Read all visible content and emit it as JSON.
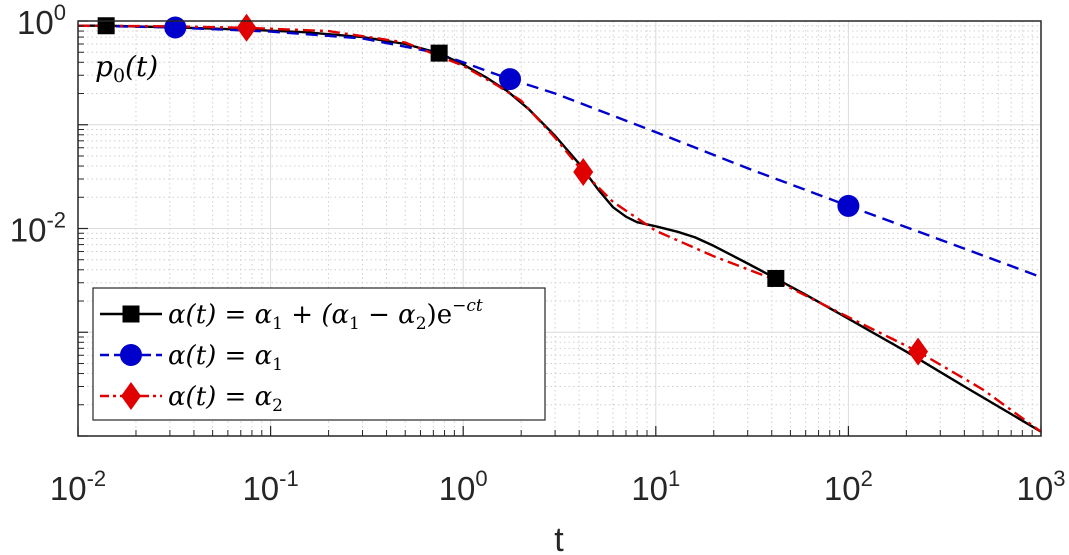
{
  "chart_data": {
    "type": "line",
    "title": "",
    "xlabel": "t",
    "ylabel": "",
    "xscale": "log",
    "yscale": "log",
    "xlim": [
      0.01,
      1000
    ],
    "ylim": [
      0.0001,
      1
    ],
    "grid": true,
    "minor_grid": true,
    "legend_position": "bottom-left",
    "annotation": {
      "text": "p₀(t)",
      "base": "p",
      "subscript": "0",
      "rest": "(t)"
    },
    "x_ticks": [
      {
        "value": 0.01,
        "base": "10",
        "exp": "-2"
      },
      {
        "value": 0.1,
        "base": "10",
        "exp": "-1"
      },
      {
        "value": 1,
        "base": "10",
        "exp": "0"
      },
      {
        "value": 10,
        "base": "10",
        "exp": "1"
      },
      {
        "value": 100,
        "base": "10",
        "exp": "2"
      },
      {
        "value": 1000,
        "base": "10",
        "exp": "3"
      }
    ],
    "y_ticks": [
      {
        "value": 1,
        "base": "10",
        "exp": "0"
      },
      {
        "value": 0.01,
        "base": "10",
        "exp": "-2"
      }
    ],
    "series": [
      {
        "name": "α(t) = α₁ + (α₁ − α₂)e^(−ct)",
        "legend": {
          "pre": "α(t) = α",
          "s1": "1",
          "mid": " + (α",
          "s2": "1",
          "mid2": " − α",
          "s3": "2",
          "post": ")e",
          "sup": "−ct"
        },
        "color": "#000000",
        "dash": "solid",
        "marker": "square",
        "x": [
          0.01,
          0.014,
          0.03,
          0.07,
          0.15,
          0.3,
          0.5,
          0.75,
          1.0,
          1.3,
          1.7,
          2.2,
          3.0,
          4.0,
          5.0,
          6.0,
          7.0,
          8.0,
          10.0,
          13.0,
          16.0,
          20.0,
          30.0,
          42.0,
          60.0,
          100.0,
          200.0,
          400.0,
          1000.0
        ],
        "y": [
          0.9,
          0.9,
          0.87,
          0.83,
          0.78,
          0.7,
          0.6,
          0.49,
          0.38,
          0.29,
          0.21,
          0.14,
          0.078,
          0.042,
          0.024,
          0.016,
          0.013,
          0.0115,
          0.0105,
          0.0093,
          0.0082,
          0.0068,
          0.0046,
          0.0033,
          0.0023,
          0.00135,
          0.00065,
          0.0003,
          0.00011
        ],
        "marker_x": [
          0.014,
          0.75,
          42.0
        ]
      },
      {
        "name": "α(t) = α₁",
        "legend": {
          "pre": "α(t) = α",
          "s1": "1"
        },
        "color": "#0000cc",
        "dash": "dashed",
        "marker": "circle",
        "x": [
          0.01,
          0.03,
          0.1,
          0.3,
          0.7,
          1.0,
          1.7,
          3.0,
          10.0,
          30.0,
          100.0,
          300.0,
          1000.0
        ],
        "y": [
          0.9,
          0.87,
          0.79,
          0.68,
          0.5,
          0.4,
          0.28,
          0.2,
          0.085,
          0.038,
          0.0165,
          0.0078,
          0.0034
        ],
        "marker_x": [
          0.032,
          1.75,
          100.0
        ]
      },
      {
        "name": "α(t) = α₂",
        "legend": {
          "pre": "α(t) = α",
          "s1": "2"
        },
        "color": "#e00000",
        "dash": "dashdot",
        "marker": "diamond",
        "x": [
          0.01,
          0.03,
          0.075,
          0.2,
          0.5,
          1.0,
          1.5,
          2.0,
          3.0,
          4.2,
          6.0,
          10.0,
          20.0,
          40.0,
          100.0,
          230.0,
          500.0,
          1000.0
        ],
        "y": [
          0.9,
          0.89,
          0.86,
          0.8,
          0.62,
          0.37,
          0.24,
          0.17,
          0.075,
          0.035,
          0.018,
          0.0095,
          0.0054,
          0.0033,
          0.0014,
          0.00065,
          0.00028,
          0.00011
        ],
        "marker_x": [
          0.075,
          4.2,
          230.0
        ]
      }
    ]
  }
}
